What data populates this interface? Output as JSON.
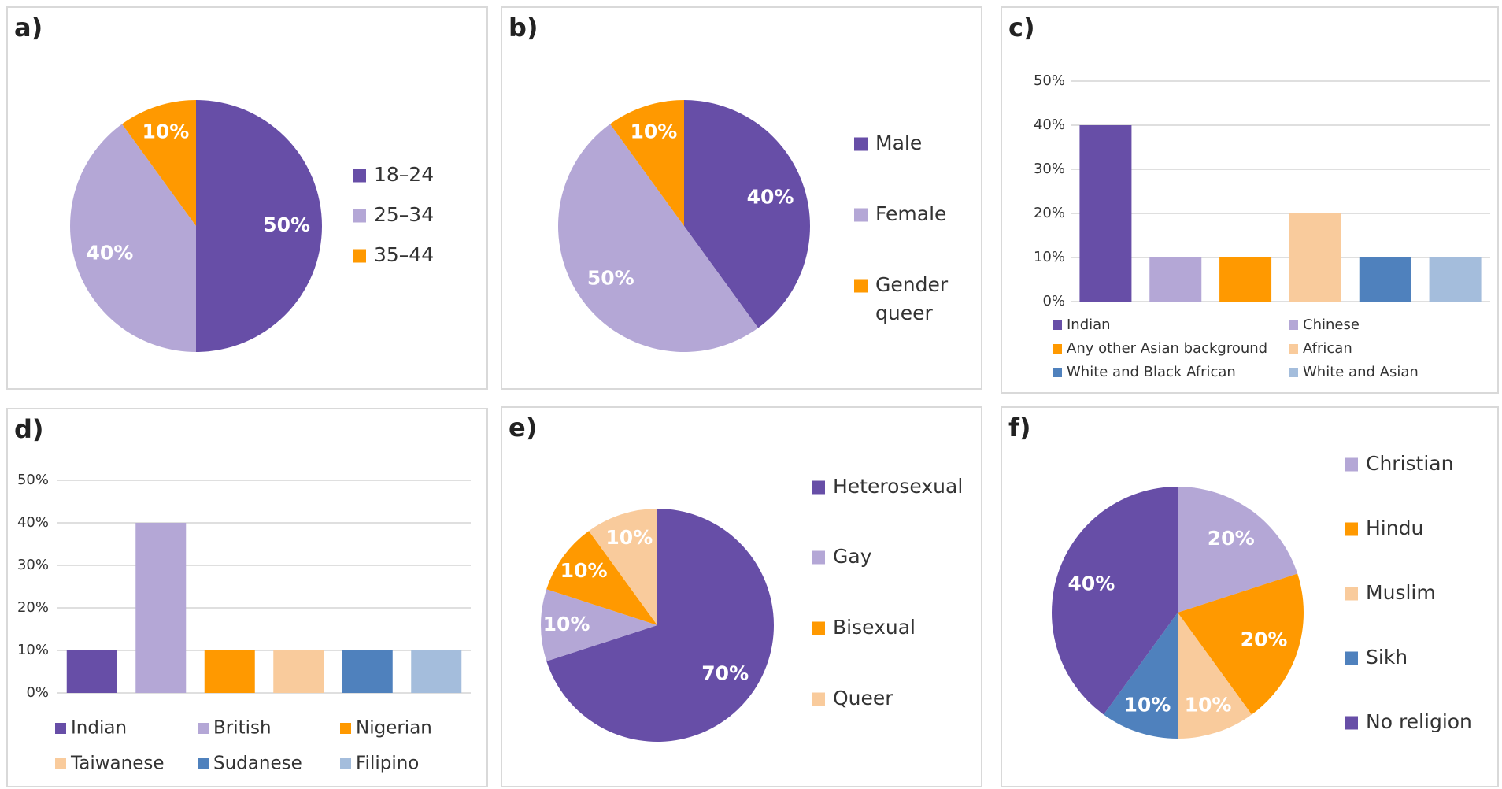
{
  "colors": {
    "purple": "#674ea7",
    "lavender": "#b4a7d6",
    "orange": "#ff9900",
    "peach": "#f9cb9c",
    "steel_blue": "#4f81bd",
    "light_blue": "#a4bddc",
    "grid": "#bfbfbf",
    "border": "#d9d9d9"
  },
  "chart_data": [
    {
      "panel": "a)",
      "type": "pie",
      "labels": [
        "18–24",
        "25–34",
        "35–44"
      ],
      "values": [
        50,
        40,
        10
      ],
      "value_labels": [
        "50%",
        "40%",
        "10%"
      ],
      "colors": [
        "#674ea7",
        "#b4a7d6",
        "#ff9900"
      ],
      "legend": "right"
    },
    {
      "panel": "b)",
      "type": "pie",
      "labels": [
        "Male",
        "Female",
        "Gender queer"
      ],
      "values": [
        40,
        50,
        10
      ],
      "value_labels": [
        "40%",
        "50%",
        "10%"
      ],
      "colors": [
        "#674ea7",
        "#b4a7d6",
        "#ff9900"
      ],
      "legend": "right"
    },
    {
      "panel": "c)",
      "type": "bar",
      "categories": [
        "Indian",
        "Chinese",
        "Any other Asian background",
        "African",
        "White and Black African",
        "White and Asian"
      ],
      "values": [
        40,
        10,
        10,
        20,
        10,
        10
      ],
      "colors": [
        "#674ea7",
        "#b4a7d6",
        "#ff9900",
        "#f9cb9c",
        "#4f81bd",
        "#a4bddc"
      ],
      "yticks": [
        "0%",
        "10%",
        "20%",
        "30%",
        "40%",
        "50%"
      ],
      "ylim": [
        0,
        50
      ],
      "grid": true,
      "legend": "bottom"
    },
    {
      "panel": "d)",
      "type": "bar",
      "categories": [
        "Indian",
        "British",
        "Nigerian",
        "Taiwanese",
        "Sudanese",
        "Filipino"
      ],
      "values": [
        10,
        40,
        10,
        10,
        10,
        10
      ],
      "colors": [
        "#674ea7",
        "#b4a7d6",
        "#ff9900",
        "#f9cb9c",
        "#4f81bd",
        "#a4bddc"
      ],
      "yticks": [
        "0%",
        "10%",
        "20%",
        "30%",
        "40%",
        "50%"
      ],
      "ylim": [
        0,
        50
      ],
      "grid": true,
      "legend": "bottom"
    },
    {
      "panel": "e)",
      "type": "pie",
      "labels": [
        "Heterosexual",
        "Gay",
        "Bisexual",
        "Queer"
      ],
      "values": [
        70,
        10,
        10,
        10
      ],
      "value_labels": [
        "70%",
        "10%",
        "10%",
        "10%"
      ],
      "colors": [
        "#674ea7",
        "#b4a7d6",
        "#ff9900",
        "#f9cb9c"
      ],
      "legend": "right"
    },
    {
      "panel": "f)",
      "type": "pie",
      "labels": [
        "Christian",
        "Hindu",
        "Muslim",
        "Sikh",
        "No religion"
      ],
      "values": [
        20,
        20,
        10,
        10,
        40
      ],
      "value_labels": [
        "20%",
        "20%",
        "10%",
        "10%",
        "40%"
      ],
      "colors": [
        "#b4a7d6",
        "#ff9900",
        "#f9cb9c",
        "#4f81bd",
        "#674ea7"
      ],
      "legend": "right"
    }
  ]
}
